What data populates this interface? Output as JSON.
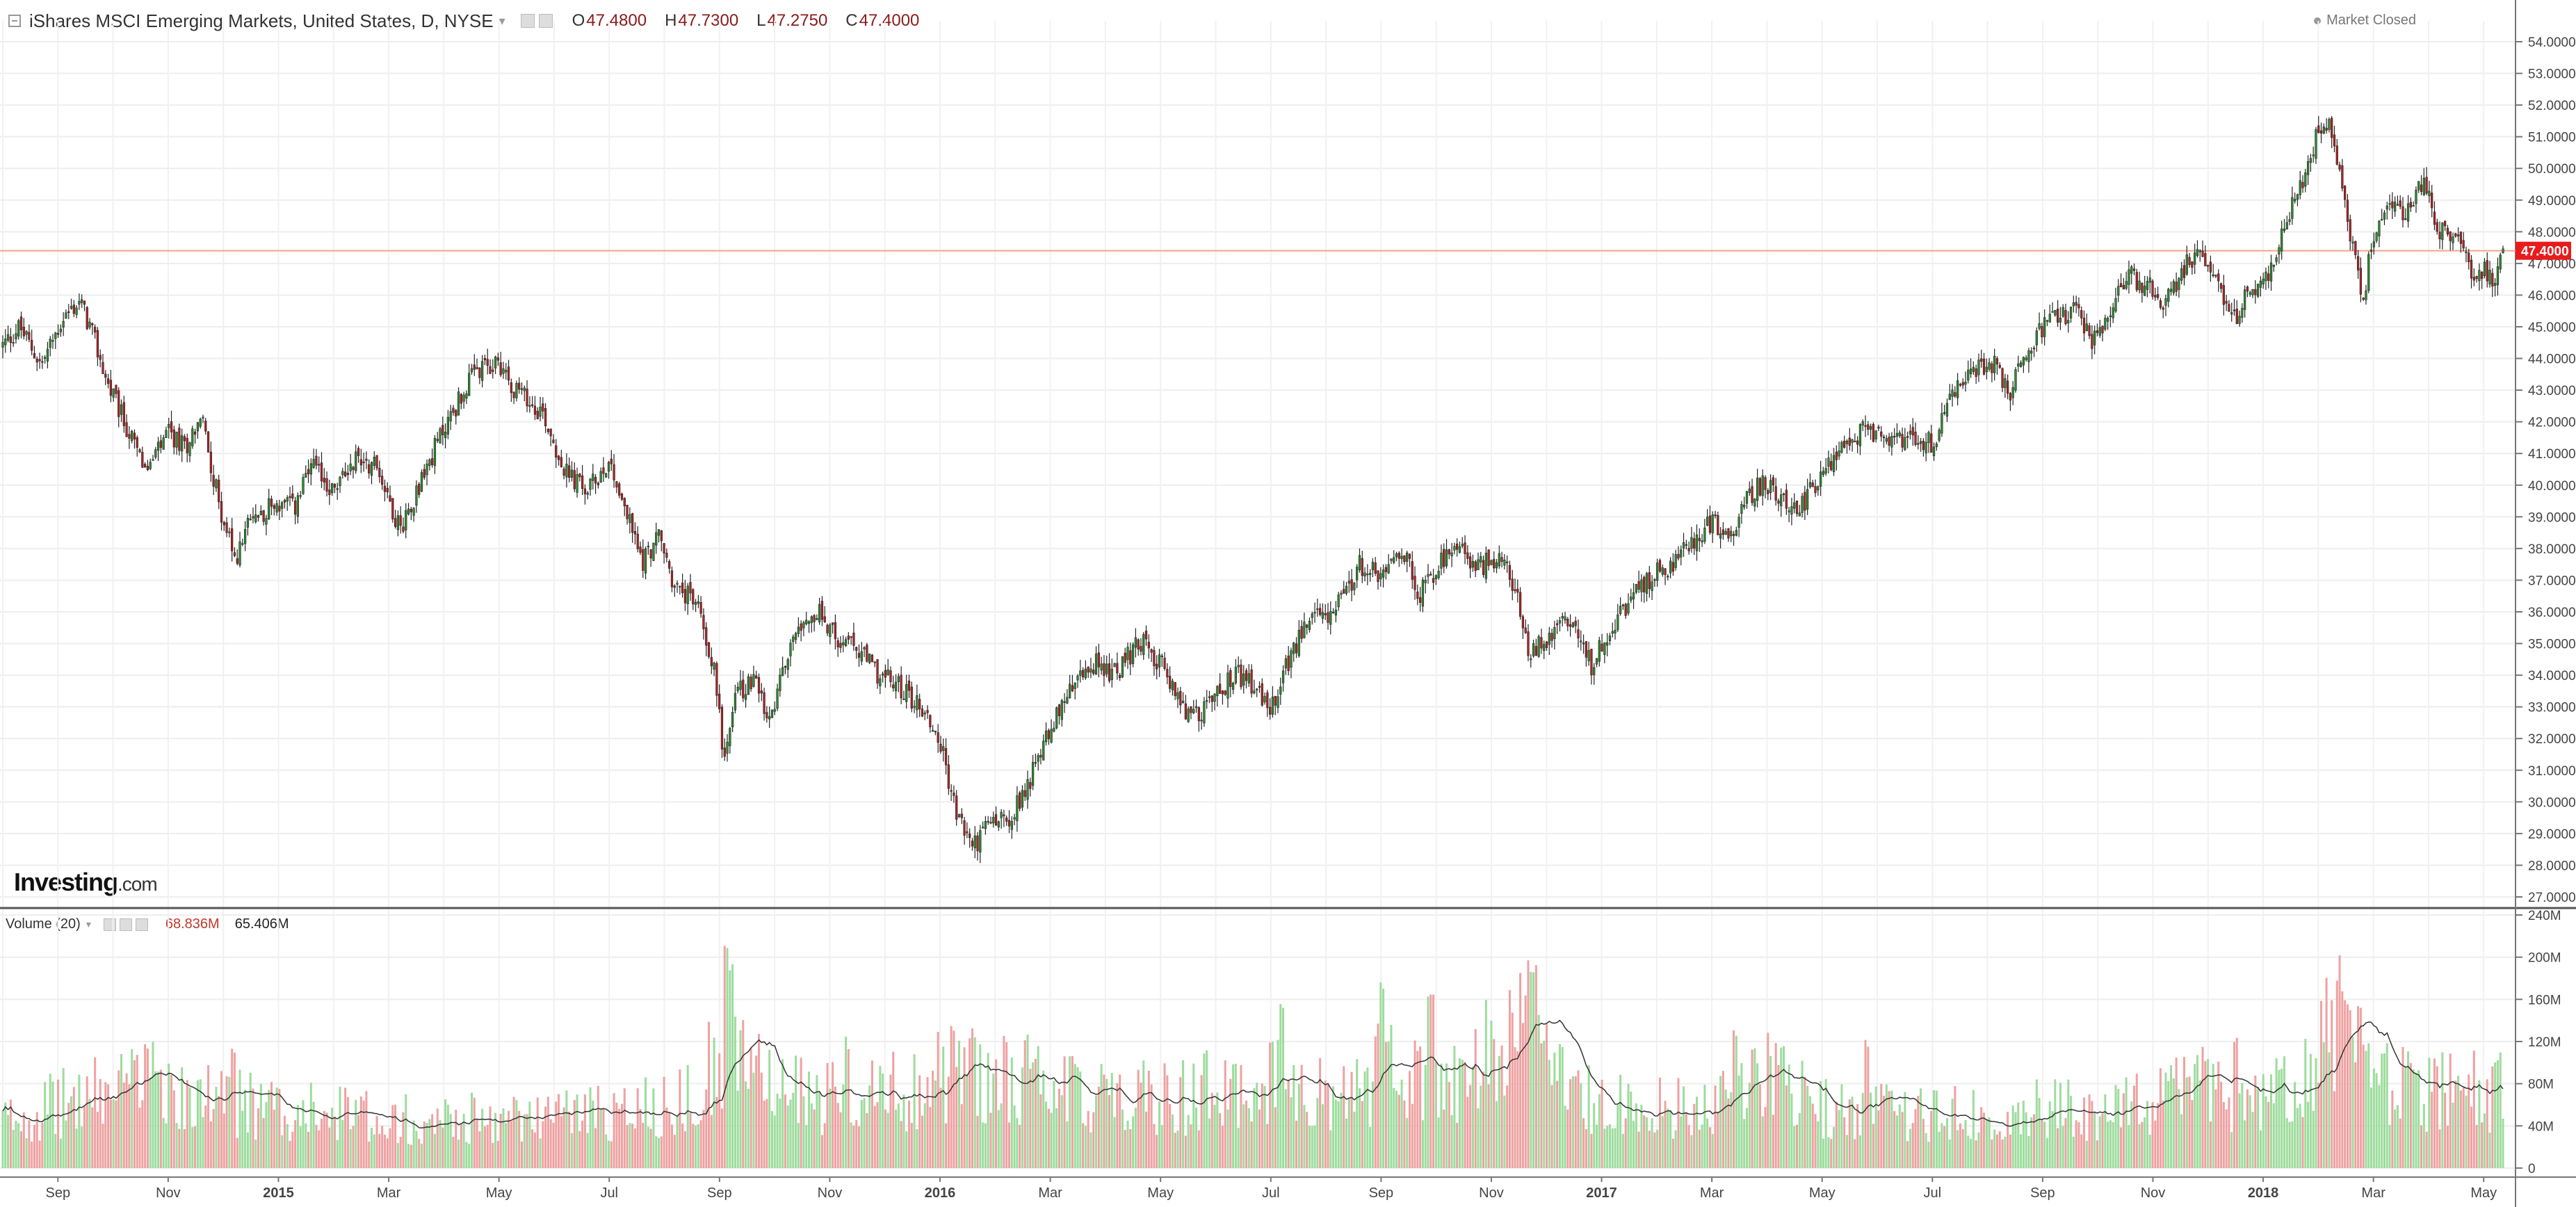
{
  "header": {
    "title": "iShares MSCI Emerging Markets, United States, D, NYSE",
    "ohlc": [
      {
        "key": "O",
        "value": "47.4800"
      },
      {
        "key": "H",
        "value": "47.7300"
      },
      {
        "key": "L",
        "value": "47.2750"
      },
      {
        "key": "C",
        "value": "47.4000"
      }
    ],
    "market_status": "Market Closed"
  },
  "volume_header": {
    "label": "Volume (20)",
    "value1": "68.836M",
    "value2": "65.406M"
  },
  "logo": {
    "main": "Investing",
    "suffix": ".com"
  },
  "colors": {
    "up": "#2e8b2e",
    "down": "#b22222",
    "vol_up": "#9edc9e",
    "vol_down": "#eea2a2",
    "price_line": "#f2a488",
    "last_tag": "#e81c1c"
  },
  "chart_data": {
    "type": "candlestick",
    "price_axis": {
      "min": 27,
      "max": 54,
      "ticks": [
        "27.0000",
        "28.0000",
        "29.0000",
        "30.0000",
        "31.0000",
        "32.0000",
        "33.0000",
        "34.0000",
        "35.0000",
        "36.0000",
        "37.0000",
        "38.0000",
        "39.0000",
        "40.0000",
        "41.0000",
        "42.0000",
        "43.0000",
        "44.0000",
        "45.0000",
        "46.0000",
        "47.0000",
        "48.0000",
        "49.0000",
        "50.0000",
        "51.0000",
        "52.0000",
        "53.0000",
        "54.0000"
      ]
    },
    "last_price": 47.4,
    "last_price_label": "47.4000",
    "volume_axis": {
      "min": 0,
      "max": 240,
      "unit": "M",
      "ticks": [
        "0",
        "40M",
        "80M",
        "120M",
        "160M",
        "200M",
        "240M"
      ]
    },
    "x_labels": [
      {
        "label": "Sep",
        "month": 1
      },
      {
        "label": "Nov",
        "month": 3
      },
      {
        "label": "2015",
        "month": 5,
        "bold": true
      },
      {
        "label": "Mar",
        "month": 7
      },
      {
        "label": "May",
        "month": 9
      },
      {
        "label": "Jul",
        "month": 11
      },
      {
        "label": "Sep",
        "month": 13
      },
      {
        "label": "Nov",
        "month": 15
      },
      {
        "label": "2016",
        "month": 17,
        "bold": true
      },
      {
        "label": "Mar",
        "month": 19
      },
      {
        "label": "May",
        "month": 21
      },
      {
        "label": "Jul",
        "month": 23
      },
      {
        "label": "Sep",
        "month": 25
      },
      {
        "label": "Nov",
        "month": 27
      },
      {
        "label": "2017",
        "month": 29,
        "bold": true
      },
      {
        "label": "Mar",
        "month": 31
      },
      {
        "label": "May",
        "month": 33
      },
      {
        "label": "Jul",
        "month": 35
      },
      {
        "label": "Sep",
        "month": 37
      },
      {
        "label": "Nov",
        "month": 39
      },
      {
        "label": "2018",
        "month": 41,
        "bold": true
      },
      {
        "label": "Mar",
        "month": 43
      },
      {
        "label": "May",
        "month": 45
      }
    ],
    "month_range": [
      0.0,
      45.35
    ],
    "close_path": [
      [
        0.0,
        44.4
      ],
      [
        0.3,
        45.0
      ],
      [
        0.7,
        43.8
      ],
      [
        1.1,
        45.3
      ],
      [
        1.4,
        45.8
      ],
      [
        1.6,
        44.9
      ],
      [
        1.9,
        43.2
      ],
      [
        2.3,
        41.6
      ],
      [
        2.6,
        40.4
      ],
      [
        3.0,
        41.6
      ],
      [
        3.3,
        41.2
      ],
      [
        3.6,
        42.2
      ],
      [
        3.9,
        39.6
      ],
      [
        4.2,
        37.6
      ],
      [
        4.5,
        38.9
      ],
      [
        4.9,
        39.4
      ],
      [
        5.3,
        39.3
      ],
      [
        5.6,
        40.6
      ],
      [
        6.0,
        39.8
      ],
      [
        6.4,
        40.9
      ],
      [
        6.8,
        40.6
      ],
      [
        7.2,
        38.6
      ],
      [
        7.5,
        39.8
      ],
      [
        8.0,
        41.8
      ],
      [
        8.5,
        43.4
      ],
      [
        9.0,
        43.9
      ],
      [
        9.3,
        43.0
      ],
      [
        9.8,
        42.3
      ],
      [
        10.2,
        40.4
      ],
      [
        10.6,
        39.8
      ],
      [
        11.0,
        40.8
      ],
      [
        11.3,
        39.2
      ],
      [
        11.6,
        37.6
      ],
      [
        11.9,
        38.4
      ],
      [
        12.2,
        36.7
      ],
      [
        12.6,
        36.3
      ],
      [
        12.9,
        34.2
      ],
      [
        13.1,
        31.2
      ],
      [
        13.3,
        33.4
      ],
      [
        13.6,
        33.9
      ],
      [
        13.9,
        32.4
      ],
      [
        14.2,
        34.4
      ],
      [
        14.4,
        35.7
      ],
      [
        14.8,
        36.0
      ],
      [
        15.1,
        35.2
      ],
      [
        15.5,
        34.8
      ],
      [
        15.9,
        34.0
      ],
      [
        16.3,
        33.6
      ],
      [
        16.7,
        32.9
      ],
      [
        17.0,
        31.9
      ],
      [
        17.3,
        29.6
      ],
      [
        17.6,
        28.6
      ],
      [
        17.9,
        29.3
      ],
      [
        18.3,
        29.6
      ],
      [
        18.6,
        30.6
      ],
      [
        19.0,
        32.4
      ],
      [
        19.4,
        33.6
      ],
      [
        19.8,
        34.4
      ],
      [
        20.2,
        34.0
      ],
      [
        20.6,
        35.1
      ],
      [
        21.0,
        34.4
      ],
      [
        21.3,
        33.2
      ],
      [
        21.6,
        32.6
      ],
      [
        22.0,
        33.4
      ],
      [
        22.4,
        34.0
      ],
      [
        22.7,
        33.6
      ],
      [
        23.0,
        32.8
      ],
      [
        23.3,
        34.4
      ],
      [
        23.7,
        35.8
      ],
      [
        24.0,
        35.9
      ],
      [
        24.3,
        36.3
      ],
      [
        24.6,
        37.5
      ],
      [
        25.0,
        37.1
      ],
      [
        25.4,
        37.9
      ],
      [
        25.7,
        36.6
      ],
      [
        26.0,
        37.4
      ],
      [
        26.4,
        37.9
      ],
      [
        26.8,
        37.4
      ],
      [
        27.1,
        37.8
      ],
      [
        27.4,
        36.9
      ],
      [
        27.7,
        34.6
      ],
      [
        28.0,
        35.2
      ],
      [
        28.3,
        35.9
      ],
      [
        28.6,
        35.4
      ],
      [
        28.8,
        34.3
      ],
      [
        29.1,
        35.3
      ],
      [
        29.5,
        36.3
      ],
      [
        29.9,
        37.1
      ],
      [
        30.3,
        37.6
      ],
      [
        30.7,
        38.3
      ],
      [
        31.0,
        38.9
      ],
      [
        31.3,
        38.2
      ],
      [
        31.6,
        39.6
      ],
      [
        31.9,
        40.0
      ],
      [
        32.3,
        39.6
      ],
      [
        32.6,
        39.3
      ],
      [
        33.0,
        40.3
      ],
      [
        33.4,
        41.3
      ],
      [
        33.8,
        41.8
      ],
      [
        34.2,
        41.4
      ],
      [
        34.6,
        41.6
      ],
      [
        35.0,
        41.3
      ],
      [
        35.3,
        42.6
      ],
      [
        35.7,
        43.6
      ],
      [
        36.1,
        43.9
      ],
      [
        36.4,
        42.9
      ],
      [
        36.8,
        44.6
      ],
      [
        37.2,
        45.2
      ],
      [
        37.6,
        45.6
      ],
      [
        37.9,
        44.4
      ],
      [
        38.2,
        45.6
      ],
      [
        38.6,
        46.6
      ],
      [
        38.9,
        46.3
      ],
      [
        39.2,
        45.8
      ],
      [
        39.6,
        46.9
      ],
      [
        39.9,
        47.4
      ],
      [
        40.2,
        46.3
      ],
      [
        40.5,
        45.3
      ],
      [
        40.8,
        46.3
      ],
      [
        41.1,
        46.6
      ],
      [
        41.4,
        48.4
      ],
      [
        41.7,
        49.5
      ],
      [
        42.0,
        51.3
      ],
      [
        42.2,
        51.6
      ],
      [
        42.4,
        49.9
      ],
      [
        42.6,
        47.6
      ],
      [
        42.8,
        45.8
      ],
      [
        43.0,
        47.9
      ],
      [
        43.3,
        49.0
      ],
      [
        43.6,
        48.6
      ],
      [
        43.9,
        49.6
      ],
      [
        44.2,
        48.1
      ],
      [
        44.5,
        47.9
      ],
      [
        44.8,
        46.7
      ],
      [
        45.0,
        46.9
      ],
      [
        45.2,
        46.2
      ],
      [
        45.35,
        47.4
      ]
    ],
    "volume_baseline": [
      [
        0.0,
        45
      ],
      [
        1.0,
        60
      ],
      [
        2.5,
        80
      ],
      [
        3.5,
        70
      ],
      [
        5.0,
        55
      ],
      [
        7.0,
        50
      ],
      [
        9.0,
        45
      ],
      [
        11.0,
        55
      ],
      [
        12.5,
        65
      ],
      [
        13.1,
        120
      ],
      [
        13.6,
        90
      ],
      [
        15.0,
        65
      ],
      [
        16.5,
        75
      ],
      [
        17.3,
        95
      ],
      [
        18.5,
        85
      ],
      [
        20.0,
        70
      ],
      [
        22.0,
        65
      ],
      [
        23.0,
        80
      ],
      [
        24.5,
        65
      ],
      [
        25.0,
        95
      ],
      [
        26.0,
        70
      ],
      [
        27.7,
        140
      ],
      [
        28.2,
        80
      ],
      [
        29.0,
        60
      ],
      [
        31.0,
        55
      ],
      [
        32.0,
        85
      ],
      [
        33.0,
        55
      ],
      [
        35.0,
        50
      ],
      [
        37.0,
        55
      ],
      [
        39.0,
        60
      ],
      [
        40.0,
        85
      ],
      [
        41.0,
        60
      ],
      [
        42.0,
        100
      ],
      [
        42.4,
        150
      ],
      [
        43.0,
        80
      ],
      [
        44.0,
        75
      ],
      [
        45.35,
        70
      ]
    ],
    "volume_spikes": [
      [
        13.1,
        220
      ],
      [
        13.2,
        195
      ],
      [
        27.7,
        205
      ],
      [
        27.75,
        195
      ],
      [
        42.35,
        182
      ],
      [
        42.45,
        170
      ],
      [
        15.3,
        125
      ],
      [
        23.2,
        160
      ],
      [
        25.0,
        180
      ],
      [
        25.9,
        165
      ],
      [
        18.2,
        120
      ],
      [
        31.4,
        135
      ],
      [
        40.5,
        130
      ],
      [
        33.8,
        125
      ],
      [
        45.3,
        110
      ],
      [
        2.6,
        120
      ],
      [
        4.2,
        118
      ],
      [
        21.8,
        112
      ],
      [
        27.8,
        190
      ]
    ],
    "volume_ma_label": "Volume (20)"
  }
}
